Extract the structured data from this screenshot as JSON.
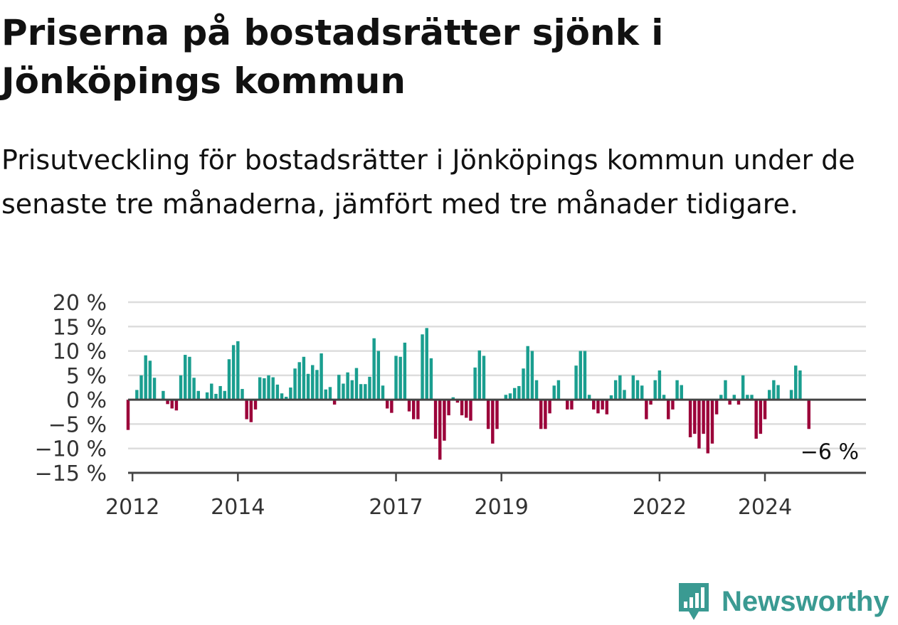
{
  "title": "Priserna på bostadsrätter sjönk i Jönköpings kommun",
  "subtitle": "Prisutveckling för bostadsrätter i Jönköpings kommun under de senaste tre månaderna, jämfört med tre månader tidigare.",
  "brand": {
    "name": "Newsworthy",
    "icon": "newsworthy-logo-icon"
  },
  "colors": {
    "positive": "#1a9e8f",
    "negative": "#9b0039",
    "grid": "#dddddd",
    "axis": "#444444",
    "brand": "#3a9a92"
  },
  "chart_data": {
    "type": "bar",
    "unit": "%",
    "ylim": [
      -15,
      20
    ],
    "y_ticks": [
      20,
      15,
      10,
      5,
      0,
      -5,
      -10,
      -15
    ],
    "y_tick_labels": [
      "20 %",
      "15 %",
      "10 %",
      "5 %",
      "0 %",
      "−5 %",
      "−10 %",
      "−15 %"
    ],
    "x_ticks": [
      "2012",
      "2014",
      "2017",
      "2019",
      "2022",
      "2024"
    ],
    "last_value_label": "−6 %",
    "grid": true,
    "x": [
      "2011-12",
      "2012-01",
      "2012-02",
      "2012-03",
      "2012-04",
      "2012-05",
      "2012-06",
      "2012-07",
      "2012-08",
      "2012-09",
      "2012-10",
      "2012-11",
      "2012-12",
      "2013-01",
      "2013-02",
      "2013-03",
      "2013-04",
      "2013-05",
      "2013-06",
      "2013-07",
      "2013-08",
      "2013-09",
      "2013-10",
      "2013-11",
      "2013-12",
      "2014-01",
      "2014-02",
      "2014-03",
      "2014-04",
      "2014-05",
      "2014-06",
      "2014-07",
      "2014-08",
      "2014-09",
      "2014-10",
      "2014-11",
      "2014-12",
      "2015-01",
      "2015-02",
      "2015-03",
      "2015-04",
      "2015-05",
      "2015-06",
      "2015-07",
      "2015-08",
      "2015-09",
      "2015-10",
      "2015-11",
      "2015-12",
      "2016-01",
      "2016-02",
      "2016-03",
      "2016-04",
      "2016-05",
      "2016-06",
      "2016-07",
      "2016-08",
      "2016-09",
      "2016-10",
      "2016-11",
      "2016-12",
      "2017-01",
      "2017-02",
      "2017-03",
      "2017-04",
      "2017-05",
      "2017-06",
      "2017-07",
      "2017-08",
      "2017-09",
      "2017-10",
      "2017-11",
      "2017-12",
      "2018-01",
      "2018-02",
      "2018-03",
      "2018-04",
      "2018-05",
      "2018-06",
      "2018-07",
      "2018-08",
      "2018-09",
      "2018-10",
      "2018-11",
      "2018-12",
      "2019-01",
      "2019-02",
      "2019-03",
      "2019-04",
      "2019-05",
      "2019-06",
      "2019-07",
      "2019-08",
      "2019-09",
      "2019-10",
      "2019-11",
      "2019-12",
      "2020-01",
      "2020-02",
      "2020-03",
      "2020-04",
      "2020-05",
      "2020-06",
      "2020-07",
      "2020-08",
      "2020-09",
      "2020-10",
      "2020-11",
      "2020-12",
      "2021-01",
      "2021-02",
      "2021-03",
      "2021-04",
      "2021-05",
      "2021-06",
      "2021-07",
      "2021-08",
      "2021-09",
      "2021-10",
      "2021-11",
      "2021-12",
      "2022-01",
      "2022-02",
      "2022-03",
      "2022-04",
      "2022-05",
      "2022-06",
      "2022-07",
      "2022-08",
      "2022-09",
      "2022-10",
      "2022-11",
      "2022-12",
      "2023-01",
      "2023-02",
      "2023-03",
      "2023-04",
      "2023-05",
      "2023-06",
      "2023-07",
      "2023-08",
      "2023-09",
      "2023-10",
      "2023-11",
      "2023-12",
      "2024-01",
      "2024-02",
      "2024-03",
      "2024-04",
      "2024-05",
      "2024-06",
      "2024-07",
      "2024-08",
      "2024-09",
      "2024-10",
      "2024-11"
    ],
    "values": [
      -6.2,
      0,
      2,
      5,
      9.1,
      8,
      4.5,
      0,
      1.8,
      -0.9,
      -1.8,
      -2.2,
      5,
      9.2,
      8.8,
      4.5,
      1.8,
      0,
      1.5,
      3.3,
      1.2,
      2.8,
      1.8,
      8.3,
      11.2,
      12,
      2.2,
      -4,
      -4.6,
      -2,
      4.6,
      4.4,
      5,
      4.6,
      3.1,
      1.3,
      0.6,
      2.5,
      6.4,
      7.7,
      8.8,
      5.3,
      7.1,
      6.1,
      9.5,
      2.1,
      2.6,
      -1,
      5.1,
      3.3,
      5.6,
      4,
      6.5,
      3.2,
      3.2,
      4.7,
      12.6,
      10,
      2.9,
      -1.8,
      -2.7,
      9,
      8.8,
      11.7,
      -2.4,
      -4,
      -4,
      13.4,
      14.7,
      8.5,
      -8,
      -12.3,
      -8.4,
      -3.2,
      0.5,
      -0.6,
      -3.2,
      -3.7,
      -4.3,
      6.6,
      10.1,
      9,
      -6,
      -9,
      -6,
      0,
      1,
      1.3,
      2.4,
      2.8,
      6.4,
      11,
      10,
      4,
      -6,
      -6,
      -2.8,
      2.9,
      4,
      0,
      -2,
      -2,
      7,
      10,
      10,
      1,
      -2,
      -2.8,
      -2,
      -3,
      0.9,
      4,
      5,
      2,
      0,
      5,
      4,
      2.9,
      -4,
      -1,
      4,
      6,
      1,
      -4,
      -2,
      4,
      3,
      0,
      -7.7,
      -7,
      -10,
      -7,
      -11,
      -9,
      -3,
      1,
      4,
      -1,
      1,
      -1,
      5,
      1,
      1,
      -8,
      -7,
      -4,
      2,
      4,
      3,
      0,
      0,
      2,
      7,
      6,
      0,
      -6
    ]
  }
}
